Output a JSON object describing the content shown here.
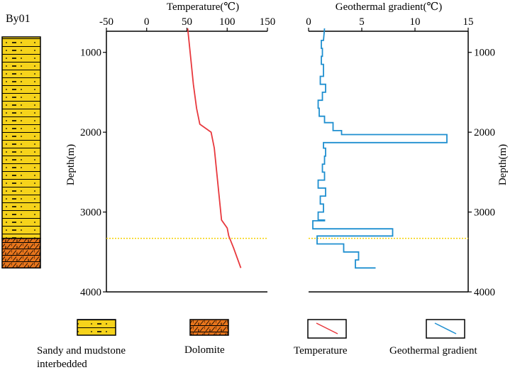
{
  "well_label": "By01",
  "lithology_column": {
    "layers": [
      {
        "name": "Sandy and mudstone interbedded",
        "top_m": 700,
        "bottom_m": 3330,
        "color": "#f6d31b"
      },
      {
        "name": "Dolomite",
        "top_m": 3330,
        "bottom_m": 3700,
        "color": "#e8751c"
      }
    ]
  },
  "chart_data": [
    {
      "type": "line",
      "title": "",
      "xlabel": "Temperature(℃)",
      "ylabel": "Depth(m)",
      "xlim": [
        -50,
        150
      ],
      "ylim": [
        4000,
        700
      ],
      "x_ticks": [
        -50,
        0,
        50,
        100,
        150
      ],
      "y_ticks": [
        1000,
        2000,
        3000,
        4000
      ],
      "x_axis_position": "top",
      "grid": false,
      "color": "#e8383d",
      "series": [
        {
          "name": "Temperature",
          "points": [
            [
              51,
              700
            ],
            [
              55,
              1100
            ],
            [
              58,
              1400
            ],
            [
              62,
              1700
            ],
            [
              66,
              1900
            ],
            [
              80,
              2000
            ],
            [
              84,
              2200
            ],
            [
              87,
              2500
            ],
            [
              90,
              2800
            ],
            [
              93,
              3100
            ],
            [
              100,
              3200
            ],
            [
              102,
              3300
            ],
            [
              108,
              3450
            ],
            [
              117,
              3700
            ]
          ]
        }
      ],
      "reference_depth_m": 3330
    },
    {
      "type": "line",
      "title": "",
      "xlabel": "Geothermal gradient(℃)",
      "ylabel": "Depth(m)",
      "xlim": [
        0,
        15
      ],
      "ylim": [
        4000,
        700
      ],
      "x_ticks": [
        0,
        5,
        10,
        15
      ],
      "y_ticks": [
        1000,
        2000,
        3000,
        4000
      ],
      "x_axis_position": "top",
      "y_axis_position": "right",
      "grid": false,
      "color": "#1f8fd0",
      "series": [
        {
          "name": "Geothermal gradient",
          "points": [
            [
              1.5,
              700
            ],
            [
              1.4,
              850
            ],
            [
              1.2,
              850
            ],
            [
              1.2,
              950
            ],
            [
              1.3,
              950
            ],
            [
              1.3,
              1050
            ],
            [
              1.2,
              1050
            ],
            [
              1.2,
              1150
            ],
            [
              1.4,
              1150
            ],
            [
              1.4,
              1300
            ],
            [
              1.1,
              1300
            ],
            [
              1.1,
              1400
            ],
            [
              1.6,
              1400
            ],
            [
              1.6,
              1500
            ],
            [
              1.3,
              1500
            ],
            [
              1.3,
              1600
            ],
            [
              0.9,
              1600
            ],
            [
              0.9,
              1700
            ],
            [
              1.0,
              1700
            ],
            [
              1.0,
              1800
            ],
            [
              1.5,
              1800
            ],
            [
              1.5,
              1880
            ],
            [
              2.3,
              1880
            ],
            [
              2.3,
              1980
            ],
            [
              3.1,
              1980
            ],
            [
              3.1,
              2030
            ],
            [
              13.0,
              2030
            ],
            [
              13.0,
              2130
            ],
            [
              1.4,
              2130
            ],
            [
              1.4,
              2200
            ],
            [
              1.6,
              2200
            ],
            [
              1.6,
              2300
            ],
            [
              1.5,
              2300
            ],
            [
              1.5,
              2400
            ],
            [
              1.3,
              2400
            ],
            [
              1.3,
              2500
            ],
            [
              1.5,
              2500
            ],
            [
              1.5,
              2600
            ],
            [
              0.9,
              2600
            ],
            [
              0.9,
              2700
            ],
            [
              1.6,
              2700
            ],
            [
              1.6,
              2800
            ],
            [
              1.1,
              2800
            ],
            [
              1.1,
              2900
            ],
            [
              1.4,
              2900
            ],
            [
              1.4,
              3000
            ],
            [
              0.9,
              3000
            ],
            [
              0.9,
              3100
            ],
            [
              1.5,
              3100
            ],
            [
              1.5,
              3110
            ],
            [
              0.4,
              3110
            ],
            [
              0.4,
              3210
            ],
            [
              7.9,
              3210
            ],
            [
              7.9,
              3300
            ],
            [
              0.8,
              3300
            ],
            [
              0.8,
              3400
            ],
            [
              3.3,
              3400
            ],
            [
              3.3,
              3500
            ],
            [
              4.7,
              3500
            ],
            [
              4.7,
              3600
            ],
            [
              4.4,
              3600
            ],
            [
              4.4,
              3700
            ],
            [
              6.3,
              3700
            ]
          ]
        }
      ],
      "reference_depth_m": 3330
    }
  ],
  "legend": [
    {
      "label": "Sandy and mudstone interbedded",
      "kind": "pattern-sand"
    },
    {
      "label": "Dolomite",
      "kind": "pattern-dolomite"
    },
    {
      "label": "Temperature",
      "kind": "line",
      "color": "#e8383d"
    },
    {
      "label": "Geothermal gradient",
      "kind": "line",
      "color": "#1f8fd0"
    }
  ]
}
